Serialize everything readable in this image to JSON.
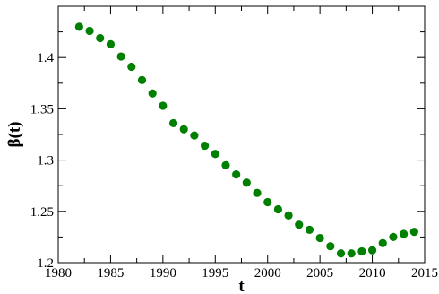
{
  "chart_data": {
    "type": "scatter",
    "title": "",
    "xlabel": "t",
    "ylabel": "β(t)",
    "xlim": [
      1980,
      2015
    ],
    "ylim": [
      1.2,
      1.45
    ],
    "x_major_ticks": [
      1980,
      1985,
      1990,
      1995,
      2000,
      2005,
      2010,
      2015
    ],
    "y_major_ticks": [
      1.2,
      1.25,
      1.3,
      1.35,
      1.4
    ],
    "x_tick_labels": [
      "1980",
      "1985",
      "1990",
      "1995",
      "2000",
      "2005",
      "2010",
      "2015"
    ],
    "y_tick_labels": [
      "1.2",
      "1.25",
      "1.3",
      "1.35",
      "1.4"
    ],
    "grid": false,
    "marker_color": "#008000",
    "series": [
      {
        "x": [
          1982,
          1983,
          1984,
          1985,
          1986,
          1987,
          1988,
          1989,
          1990,
          1991,
          1992,
          1993,
          1994,
          1995,
          1996,
          1997,
          1998,
          1999,
          2000,
          2001,
          2002,
          2003,
          2004,
          2005,
          2006,
          2007,
          2008,
          2009,
          2010,
          2011,
          2012,
          2013,
          2014
        ],
        "y": [
          1.43,
          1.426,
          1.419,
          1.413,
          1.401,
          1.391,
          1.378,
          1.365,
          1.353,
          1.336,
          1.33,
          1.324,
          1.314,
          1.306,
          1.295,
          1.286,
          1.278,
          1.268,
          1.259,
          1.252,
          1.246,
          1.237,
          1.232,
          1.224,
          1.216,
          1.209,
          1.209,
          1.211,
          1.212,
          1.219,
          1.225,
          1.228,
          1.23
        ]
      }
    ]
  }
}
